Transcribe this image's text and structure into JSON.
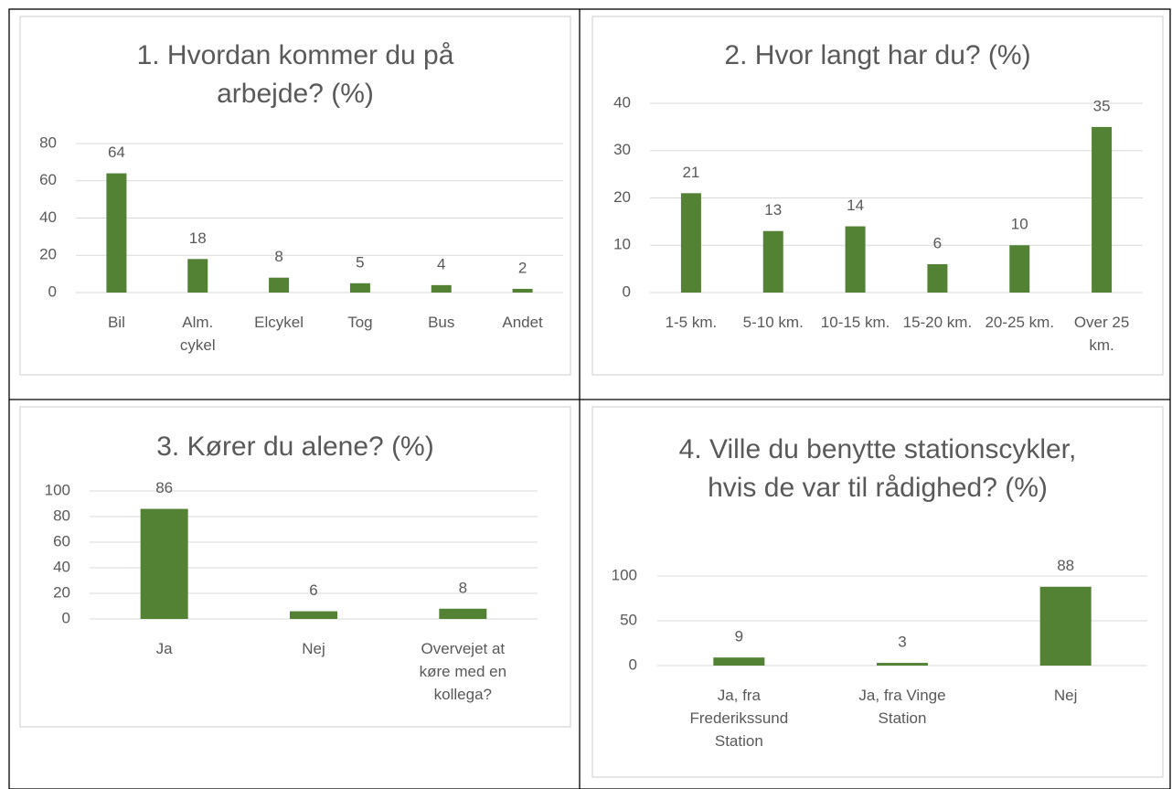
{
  "chart_data": [
    {
      "type": "bar",
      "title": "1. Hvordan kommer du på arbejde? (%)",
      "categories": [
        "Bil",
        "Alm. cykel",
        "Elcykel",
        "Tog",
        "Bus",
        "Andet"
      ],
      "values": [
        64,
        18,
        8,
        5,
        4,
        2
      ],
      "color": "#548235",
      "ylim": [
        0,
        80
      ],
      "yticks": [
        0,
        20,
        40,
        60,
        80
      ],
      "grid": true
    },
    {
      "type": "bar",
      "title": "2. Hvor langt har du? (%)",
      "categories": [
        "1-5 km.",
        "5-10 km.",
        "10-15 km.",
        "15-20 km.",
        "20-25 km.",
        "Over 25 km."
      ],
      "values": [
        21,
        13,
        14,
        6,
        10,
        35
      ],
      "color": "#548235",
      "ylim": [
        0,
        40
      ],
      "yticks": [
        0,
        10,
        20,
        30,
        40
      ],
      "grid": true
    },
    {
      "type": "bar",
      "title": "3. Kører du alene? (%)",
      "categories": [
        "Ja",
        "Nej",
        "Overvejet at køre med en kollega?"
      ],
      "values": [
        86,
        6,
        8
      ],
      "color": "#548235",
      "ylim": [
        0,
        100
      ],
      "yticks": [
        0,
        20,
        40,
        60,
        80,
        100
      ],
      "grid": true
    },
    {
      "type": "bar",
      "title": "4. Ville du benytte stationscykler, hvis de var til rådighed? (%)",
      "categories": [
        "Ja, fra Frederikssund Station",
        "Ja, fra Vinge Station",
        "Nej"
      ],
      "values": [
        9,
        3,
        88
      ],
      "color": "#548235",
      "ylim": [
        0,
        100
      ],
      "yticks": [
        0,
        50,
        100
      ],
      "grid": true
    }
  ]
}
